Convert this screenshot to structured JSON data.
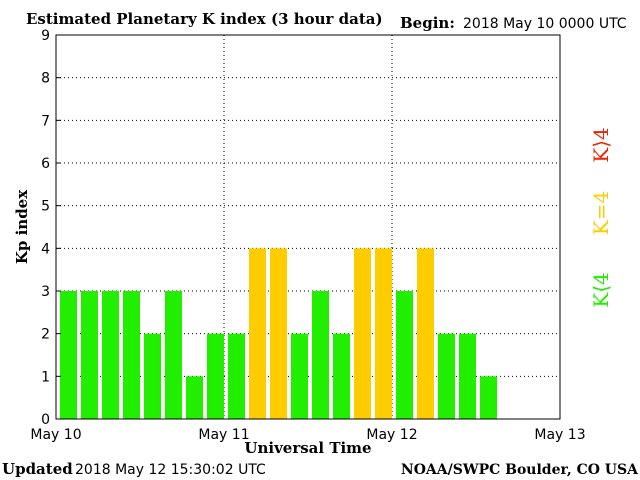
{
  "chart_data": {
    "type": "bar",
    "title": "Estimated Planetary K index (3 hour data)",
    "begin_label": "Begin:",
    "begin_value": "2018 May 10 0000 UTC",
    "xlabel": "Universal Time",
    "ylabel": "Kp index",
    "x_ticks": [
      "May 10",
      "May 11",
      "May 12",
      "May 13"
    ],
    "y_ticks": [
      "0",
      "1",
      "2",
      "3",
      "4",
      "5",
      "6",
      "7",
      "8",
      "9"
    ],
    "ylim": [
      0,
      9
    ],
    "x_range_slots": 24,
    "grid": true,
    "values": [
      3,
      3,
      3,
      3,
      2,
      3,
      1,
      2,
      2,
      4,
      4,
      2,
      3,
      2,
      4,
      4,
      3,
      4,
      2,
      2,
      1
    ],
    "legend": [
      {
        "label": "K<4",
        "display": "K⟨4",
        "color": "#22ee00"
      },
      {
        "label": "K=4",
        "display": "K=4",
        "color": "#ffcc00"
      },
      {
        "label": "K>4",
        "display": "K⟩4",
        "color": "#ee2200"
      }
    ]
  },
  "footer": {
    "updated_label": "Updated",
    "updated_value": "2018 May 12 15:30:02 UTC",
    "source": "NOAA/SWPC Boulder, CO USA"
  }
}
